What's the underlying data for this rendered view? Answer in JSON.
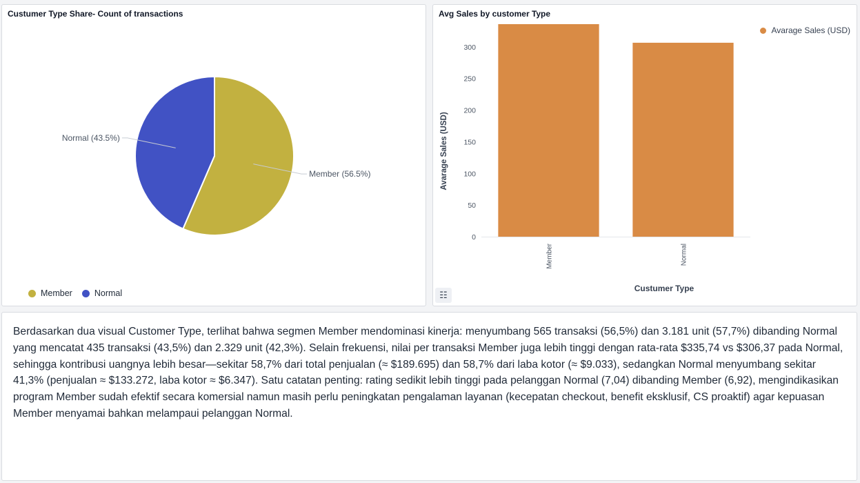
{
  "pie_panel": {
    "title": "Custumer Type Share- Count of transactions",
    "legend": [
      {
        "label": "Member",
        "color": "#c2b140"
      },
      {
        "label": "Normal",
        "color": "#4152c4"
      }
    ]
  },
  "bar_panel": {
    "title": "Avg Sales by customer Type",
    "legend_label": "Avarage Sales (USD)",
    "list_icon": "list-icon"
  },
  "summary_text": "Berdasarkan dua visual Customer Type, terlihat bahwa segmen Member mendominasi kinerja: menyumbang 565 transaksi (56,5%) dan 3.181 unit (57,7%) dibanding Normal yang mencatat 435 transaksi (43,5%) dan 2.329 unit (42,3%). Selain frekuensi, nilai per transaksi Member juga lebih tinggi dengan rata-rata $335,74 vs $306,37 pada Normal, sehingga kontribusi uangnya lebih besar—sekitar 58,7% dari total penjualan (≈ $189.695) dan 58,7% dari laba kotor (≈ $9.033), sedangkan Normal menyumbang sekitar 41,3% (penjualan ≈ $133.272, laba kotor ≈ $6.347). Satu catatan penting: rating sedikit lebih tinggi pada pelanggan Normal (7,04) dibanding Member (6,92), mengindikasikan program Member sudah efektif secara komersial namun masih perlu peningkatan pengalaman layanan (kecepatan checkout, benefit eksklusif, CS proaktif) agar kepuasan Member menyamai bahkan melampaui pelanggan Normal.",
  "chart_data": [
    {
      "type": "pie",
      "title": "Custumer Type Share- Count of transactions",
      "categories": [
        "Member",
        "Normal"
      ],
      "values": [
        56.5,
        43.5
      ],
      "labels": [
        "Member (56.5%)",
        "Normal (43.5%)"
      ],
      "colors": [
        "#c2b140",
        "#4152c4"
      ],
      "legend": "bottom-left"
    },
    {
      "type": "bar",
      "title": "Avg Sales by customer Type",
      "categories": [
        "Member",
        "Normal"
      ],
      "values": [
        335.74,
        306.37
      ],
      "series": [
        {
          "name": "Avarage Sales (USD)",
          "values": [
            335.74,
            306.37
          ]
        }
      ],
      "xlabel": "Custumer Type",
      "ylabel": "Avarage Sales (USD)",
      "yticks": [
        0,
        50,
        100,
        150,
        200,
        250,
        300
      ],
      "ylim": [
        0,
        335.74
      ],
      "color": "#d98b45",
      "grid": false,
      "legend": "top-right"
    }
  ]
}
